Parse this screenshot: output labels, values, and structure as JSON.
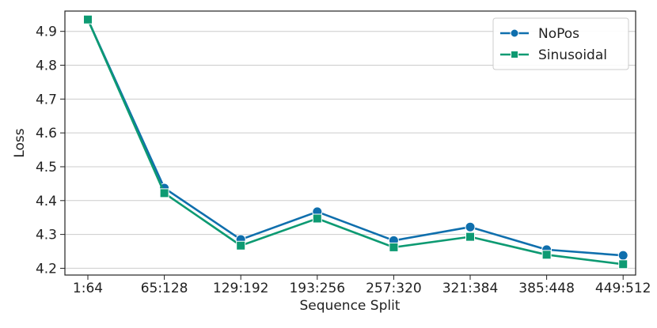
{
  "chart_data": {
    "type": "line",
    "title": "",
    "xlabel": "Sequence Split",
    "ylabel": "Loss",
    "categories": [
      "1:64",
      "65:128",
      "129:192",
      "193:256",
      "257:320",
      "321:384",
      "385:448",
      "449:512"
    ],
    "yticks": [
      "4.2",
      "4.3",
      "4.4",
      "4.5",
      "4.6",
      "4.7",
      "4.8",
      "4.9"
    ],
    "ylim": [
      4.18,
      4.96
    ],
    "grid": "horizontal",
    "legend_position": "top-right",
    "series": [
      {
        "name": "NoPos",
        "color": "#0f6fad",
        "marker": "circle",
        "values": [
          4.935,
          4.437,
          4.285,
          4.367,
          4.282,
          4.322,
          4.255,
          4.238
        ]
      },
      {
        "name": "Sinusoidal",
        "color": "#0d9a72",
        "marker": "square",
        "values": [
          4.935,
          4.422,
          4.267,
          4.347,
          4.262,
          4.293,
          4.24,
          4.212
        ]
      }
    ]
  }
}
